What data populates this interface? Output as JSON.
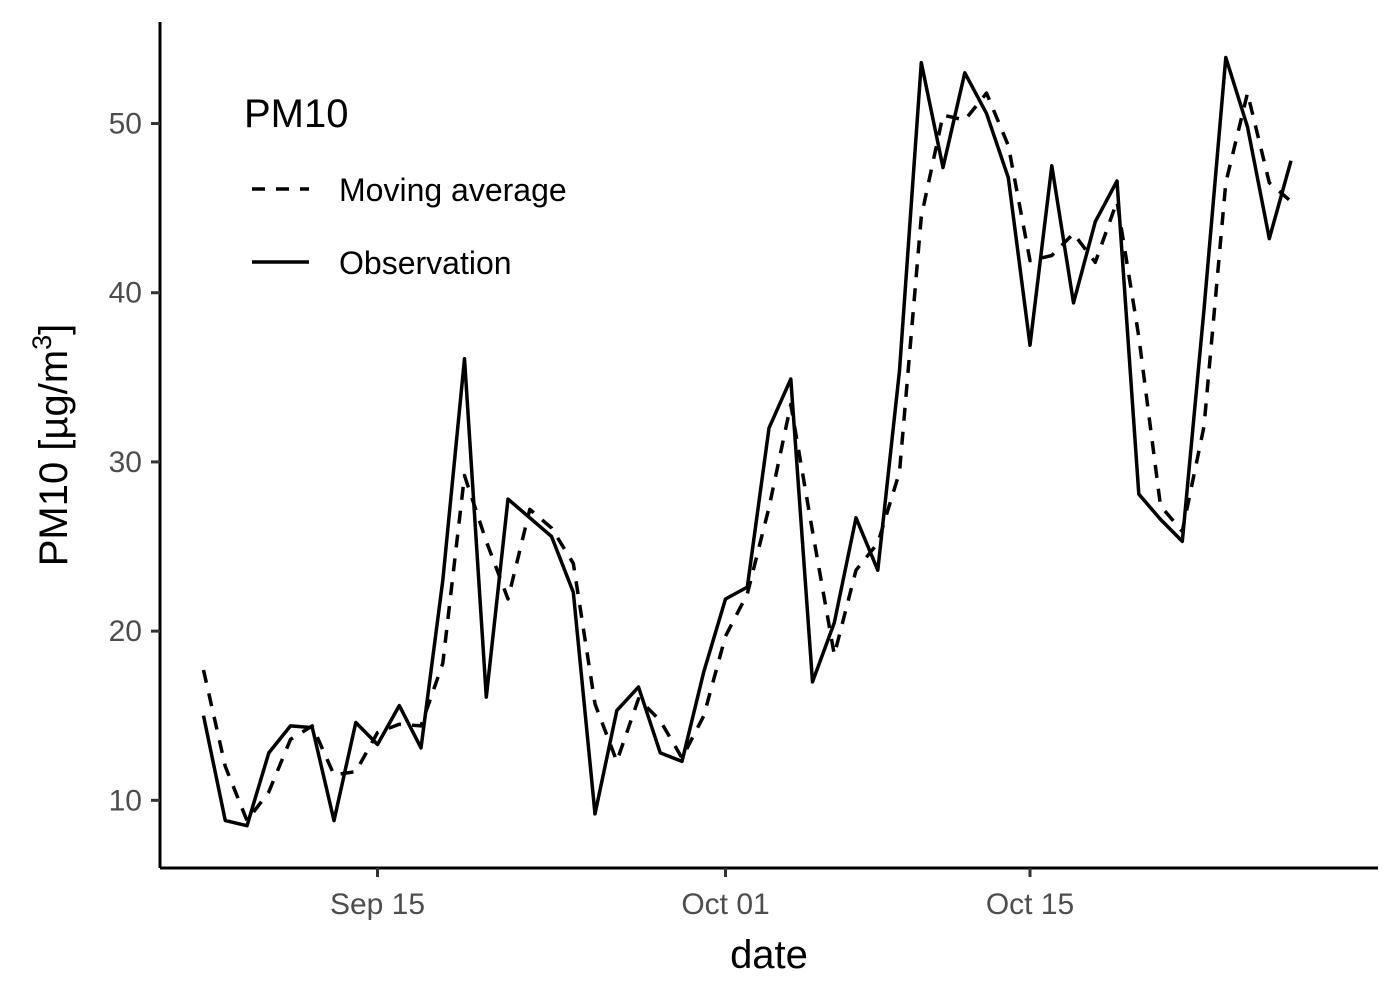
{
  "chart_data": {
    "type": "line",
    "xlabel": "date",
    "ylabel": "PM10 [µg/m³]",
    "ylabel_parts": {
      "main": "PM10 [µg/m",
      "sup": "3",
      "close": "]"
    },
    "xlim": [
      "2023-09-05",
      "2023-10-31"
    ],
    "ylim": [
      6,
      56
    ],
    "x_ticks": [
      {
        "date": "2023-09-15",
        "label": "Sep 15"
      },
      {
        "date": "2023-10-01",
        "label": "Oct 01"
      },
      {
        "date": "2023-10-15",
        "label": "Oct 15"
      }
    ],
    "y_ticks": [
      {
        "value": 10,
        "label": "10"
      },
      {
        "value": 20,
        "label": "20"
      },
      {
        "value": 30,
        "label": "30"
      },
      {
        "value": 40,
        "label": "40"
      },
      {
        "value": 50,
        "label": "50"
      }
    ],
    "grid": false,
    "legend": {
      "title": "PM10",
      "placement": "top-left",
      "entries": [
        {
          "label": "Moving average",
          "series": "moving_average"
        },
        {
          "label": "Observation",
          "series": "observation"
        }
      ]
    },
    "dates": [
      "2023-09-07",
      "2023-09-08",
      "2023-09-09",
      "2023-09-10",
      "2023-09-11",
      "2023-09-12",
      "2023-09-13",
      "2023-09-14",
      "2023-09-15",
      "2023-09-16",
      "2023-09-17",
      "2023-09-18",
      "2023-09-19",
      "2023-09-20",
      "2023-09-21",
      "2023-09-22",
      "2023-09-23",
      "2023-09-24",
      "2023-09-25",
      "2023-09-26",
      "2023-09-27",
      "2023-09-28",
      "2023-09-29",
      "2023-09-30",
      "2023-10-01",
      "2023-10-02",
      "2023-10-03",
      "2023-10-04",
      "2023-10-05",
      "2023-10-06",
      "2023-10-07",
      "2023-10-08",
      "2023-10-09",
      "2023-10-10",
      "2023-10-11",
      "2023-10-12",
      "2023-10-13",
      "2023-10-14",
      "2023-10-15",
      "2023-10-16",
      "2023-10-17",
      "2023-10-18",
      "2023-10-19",
      "2023-10-20",
      "2023-10-21",
      "2023-10-22",
      "2023-10-23",
      "2023-10-24",
      "2023-10-25",
      "2023-10-26",
      "2023-10-27"
    ],
    "series": [
      {
        "key": "observation",
        "name": "Observation",
        "dash": "solid",
        "values": [
          15.0,
          8.8,
          8.5,
          12.8,
          14.4,
          14.3,
          8.8,
          14.6,
          13.3,
          15.6,
          13.1,
          23.0,
          36.1,
          16.1,
          27.8,
          26.7,
          25.6,
          22.3,
          9.2,
          15.3,
          16.7,
          12.8,
          12.3,
          17.6,
          21.9,
          22.6,
          32.0,
          34.9,
          17.0,
          20.5,
          26.7,
          23.6,
          35.4,
          53.6,
          47.4,
          53.0,
          50.6,
          46.8,
          36.9,
          47.5,
          39.4,
          44.2,
          46.6,
          28.1,
          26.6,
          25.3,
          39.0,
          53.9,
          49.8,
          43.2,
          47.8
        ]
      },
      {
        "key": "moving_average",
        "name": "Moving average",
        "dash": "dashed",
        "values": [
          17.7,
          12.0,
          8.8,
          10.5,
          13.6,
          14.4,
          11.5,
          11.7,
          14.0,
          14.5,
          14.4,
          18.1,
          29.2,
          25.3,
          21.9,
          27.2,
          26.1,
          24.0,
          15.7,
          12.3,
          16.0,
          14.7,
          12.5,
          15.0,
          19.7,
          22.2,
          27.3,
          33.4,
          25.9,
          18.6,
          23.6,
          25.2,
          29.4,
          44.5,
          50.5,
          50.2,
          51.8,
          48.7,
          41.9,
          42.2,
          43.5,
          41.8,
          45.4,
          37.4,
          27.4,
          25.9,
          32.1,
          46.5,
          51.8,
          46.5,
          45.4
        ]
      }
    ]
  }
}
